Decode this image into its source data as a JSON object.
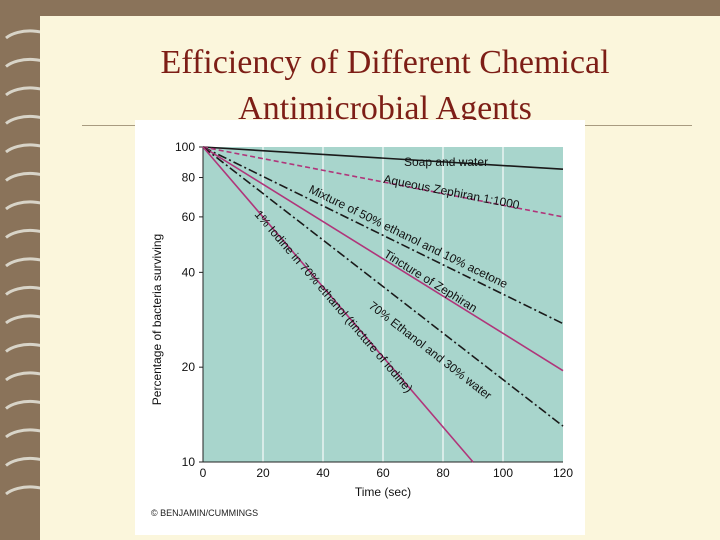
{
  "slide": {
    "title_line1": "Efficiency of Different Chemical",
    "title_line2": "Antimicrobial Agents",
    "background": "#fbf6dc",
    "title_color": "#7d1e16"
  },
  "figure": {
    "credit": "© BENJAMIN/CUMMINGS",
    "plot_background": "#a8d5cc"
  },
  "chart_data": {
    "type": "line",
    "title": "",
    "xlabel": "Time (sec)",
    "ylabel": "Percentage of bacteria surviving",
    "xlim": [
      0,
      120
    ],
    "ylim": [
      10,
      100
    ],
    "y_scale": "log",
    "x_ticks": [
      0,
      20,
      40,
      60,
      80,
      100,
      120
    ],
    "y_ticks": [
      10,
      20,
      40,
      60,
      80,
      100
    ],
    "grid": "vertical",
    "series": [
      {
        "name": "Soap and water",
        "x": [
          0,
          120
        ],
        "y": [
          100,
          85
        ],
        "color": "#1a1a1a",
        "dash": "solid",
        "label_at": [
          67,
          87
        ]
      },
      {
        "name": "Aqueous Zephiran 1:1000",
        "x": [
          0,
          120
        ],
        "y": [
          100,
          60
        ],
        "color": "#b0357a",
        "dash": "dashed",
        "label_at": [
          60,
          77
        ]
      },
      {
        "name": "Mixture of 50% ethanol and 10% acetone",
        "x": [
          0,
          120
        ],
        "y": [
          100,
          27.5
        ],
        "color": "#1a1a1a",
        "dash": "dashdot",
        "label_at": [
          35,
          72
        ]
      },
      {
        "name": "Tincture of Zephiran",
        "x": [
          0,
          120
        ],
        "y": [
          100,
          19.5
        ],
        "color": "#b0357a",
        "dash": "solid",
        "label_at": [
          60,
          45
        ]
      },
      {
        "name": "70% Ethanol and 30% water",
        "x": [
          0,
          120
        ],
        "y": [
          100,
          13
        ],
        "color": "#1a1a1a",
        "dash": "dashdot",
        "label_at": [
          55,
          31
        ]
      },
      {
        "name": "1% Iodine in 70% ethanol (tincture of iodine)",
        "x": [
          0,
          90
        ],
        "y": [
          100,
          10
        ],
        "color": "#b0357a",
        "dash": "solid",
        "label_at": [
          17,
          61
        ]
      }
    ]
  }
}
